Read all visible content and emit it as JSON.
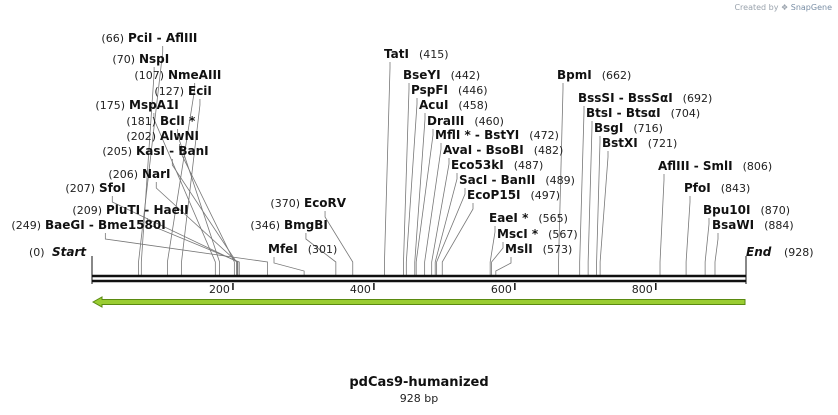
{
  "credit": {
    "prefix": "Created by",
    "brand": "SnapGene"
  },
  "map": {
    "name": "pdCas9-humanized",
    "length_label": "928 bp",
    "length": 928,
    "start_label": "Start",
    "start_pos": "(0)",
    "end_label": "End",
    "end_pos": "(928)",
    "ticks": [
      200,
      400,
      600,
      800
    ],
    "colors": {
      "backbone": "#111111",
      "feature": "#9acd32",
      "feature_stroke": "#5a8a10",
      "leader": "#777777"
    }
  },
  "sites": [
    {
      "name": "PciI  -  AflIII",
      "pos": "(66)",
      "bp": 66,
      "side": "right"
    },
    {
      "name": "NspI",
      "pos": "(70)",
      "bp": 70,
      "side": "right"
    },
    {
      "name": "NmeAIII",
      "pos": "(107)",
      "bp": 107,
      "side": "right"
    },
    {
      "name": "EciI",
      "pos": "(127)",
      "bp": 127,
      "side": "right"
    },
    {
      "name": "MspA1I",
      "pos": "(175)",
      "bp": 175,
      "side": "right"
    },
    {
      "name": "BclI *",
      "pos": "(181)",
      "bp": 181,
      "side": "right"
    },
    {
      "name": "AlwNI",
      "pos": "(202)",
      "bp": 202,
      "side": "right"
    },
    {
      "name": "KasI  -  BanI",
      "pos": "(205)",
      "bp": 205,
      "side": "right"
    },
    {
      "name": "NarI",
      "pos": "(206)",
      "bp": 206,
      "side": "right"
    },
    {
      "name": "SfoI",
      "pos": "(207)",
      "bp": 207,
      "side": "right"
    },
    {
      "name": "PluTI  -  HaeII",
      "pos": "(209)",
      "bp": 209,
      "side": "right"
    },
    {
      "name": "BaeGI  -  Bme1580I",
      "pos": "(249)",
      "bp": 249,
      "side": "right"
    },
    {
      "name": "MfeI",
      "pos": "(301)",
      "bp": 301,
      "side": "left"
    },
    {
      "name": "BmgBI",
      "pos": "(346)",
      "bp": 346,
      "side": "right"
    },
    {
      "name": "EcoRV",
      "pos": "(370)",
      "bp": 370,
      "side": "right"
    },
    {
      "name": "TatI",
      "pos": "(415)",
      "bp": 415,
      "side": "left"
    },
    {
      "name": "BseYI",
      "pos": "(442)",
      "bp": 442,
      "side": "left"
    },
    {
      "name": "PspFI",
      "pos": "(446)",
      "bp": 446,
      "side": "left"
    },
    {
      "name": "AcuI",
      "pos": "(458)",
      "bp": 458,
      "side": "left"
    },
    {
      "name": "DraIII",
      "pos": "(460)",
      "bp": 460,
      "side": "left"
    },
    {
      "name": "MflI *  -  BstYI",
      "pos": "(472)",
      "bp": 472,
      "side": "left"
    },
    {
      "name": "AvaI  -  BsoBI",
      "pos": "(482)",
      "bp": 482,
      "side": "left"
    },
    {
      "name": "Eco53kI",
      "pos": "(487)",
      "bp": 487,
      "side": "left"
    },
    {
      "name": "SacI  -  BanII",
      "pos": "(489)",
      "bp": 489,
      "side": "left"
    },
    {
      "name": "EcoP15I",
      "pos": "(497)",
      "bp": 497,
      "side": "left"
    },
    {
      "name": "EaeI *",
      "pos": "(565)",
      "bp": 565,
      "side": "left"
    },
    {
      "name": "MscI *",
      "pos": "(567)",
      "bp": 567,
      "side": "left"
    },
    {
      "name": "MslI",
      "pos": "(573)",
      "bp": 573,
      "side": "left"
    },
    {
      "name": "BpmI",
      "pos": "(662)",
      "bp": 662,
      "side": "left"
    },
    {
      "name": "BssSI  -  BssSαI",
      "pos": "(692)",
      "bp": 692,
      "side": "left"
    },
    {
      "name": "BtsI  -  BtsαI",
      "pos": "(704)",
      "bp": 704,
      "side": "left"
    },
    {
      "name": "BsgI",
      "pos": "(716)",
      "bp": 716,
      "side": "left"
    },
    {
      "name": "BstXI",
      "pos": "(721)",
      "bp": 721,
      "side": "left"
    },
    {
      "name": "AflIII  -  SmlI",
      "pos": "(806)",
      "bp": 806,
      "side": "left"
    },
    {
      "name": "PfoI",
      "pos": "(843)",
      "bp": 843,
      "side": "left"
    },
    {
      "name": "Bpu10I",
      "pos": "(870)",
      "bp": 870,
      "side": "left"
    },
    {
      "name": "BsaWI",
      "pos": "(884)",
      "bp": 884,
      "side": "left"
    }
  ]
}
